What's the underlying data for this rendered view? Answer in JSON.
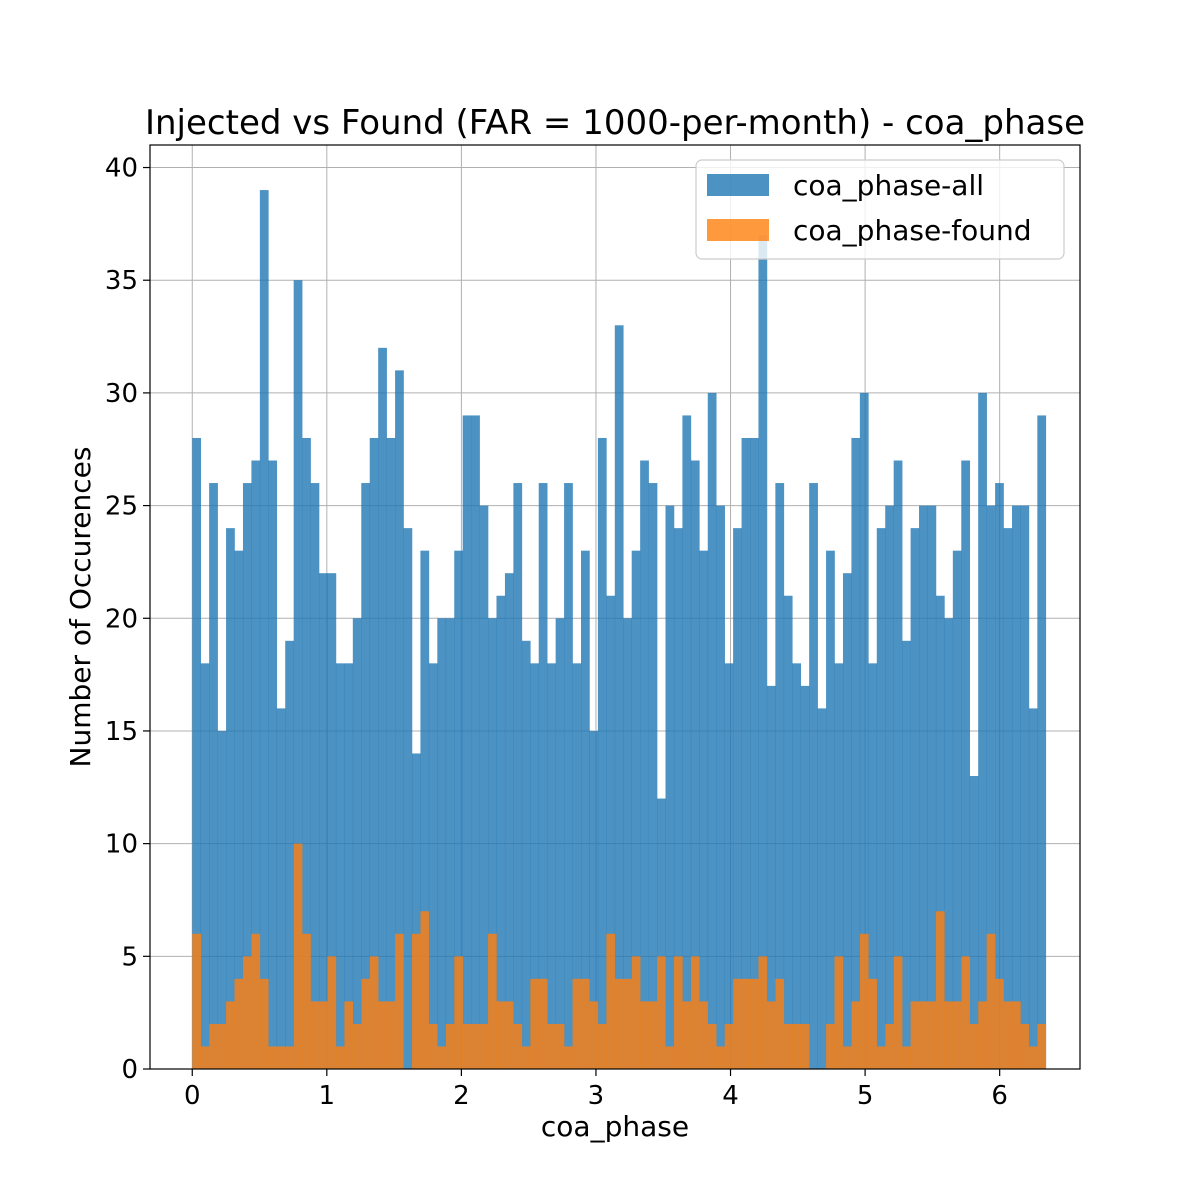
{
  "chart_data": {
    "type": "bar",
    "title": "Injected vs Found (FAR = 1000-per-month) - coa_phase",
    "xlabel": "coa_phase",
    "ylabel": "Number of Occurences",
    "xlim": [
      -0.314,
      6.597
    ],
    "ylim": [
      0,
      41
    ],
    "grid": true,
    "legend_position": "top-right",
    "bin_start": 0.0,
    "bin_width": 0.0628,
    "xticks": [
      0,
      1,
      2,
      3,
      4,
      5,
      6
    ],
    "yticks": [
      0,
      5,
      10,
      15,
      20,
      25,
      30,
      35,
      40
    ],
    "series": [
      {
        "name": "coa_phase-all",
        "color": "#1f77b4",
        "opacity": 0.8,
        "values": [
          28,
          18,
          26,
          15,
          24,
          23,
          26,
          27,
          39,
          27,
          16,
          19,
          35,
          28,
          26,
          22,
          22,
          18,
          18,
          20,
          26,
          28,
          32,
          28,
          31,
          24,
          14,
          23,
          18,
          20,
          20,
          23,
          29,
          29,
          25,
          20,
          21,
          22,
          26,
          19,
          18,
          26,
          18,
          20,
          26,
          18,
          23,
          15,
          28,
          21,
          33,
          20,
          23,
          27,
          26,
          12,
          25,
          24,
          29,
          27,
          23,
          30,
          25,
          18,
          24,
          28,
          28,
          37,
          17,
          26,
          21,
          18,
          17,
          26,
          16,
          23,
          18,
          22,
          28,
          30,
          18,
          24,
          25,
          27,
          19,
          24,
          25,
          25,
          21,
          20,
          23,
          27,
          13,
          30,
          25,
          26,
          24,
          25,
          25,
          16,
          29
        ]
      },
      {
        "name": "coa_phase-found",
        "color": "#ff7f0e",
        "opacity": 0.8,
        "values": [
          6,
          1,
          2,
          2,
          3,
          4,
          5,
          6,
          4,
          1,
          1,
          1,
          10,
          6,
          3,
          3,
          5,
          1,
          3,
          2,
          4,
          5,
          3,
          3,
          6,
          0,
          6,
          7,
          2,
          1,
          2,
          5,
          2,
          2,
          2,
          6,
          3,
          3,
          2,
          1,
          4,
          4,
          2,
          2,
          1,
          4,
          4,
          3,
          2,
          6,
          4,
          4,
          5,
          3,
          3,
          5,
          1,
          5,
          3,
          5,
          3,
          2,
          1,
          2,
          4,
          4,
          4,
          5,
          3,
          4,
          2,
          2,
          2,
          0,
          0,
          2,
          5,
          1,
          3,
          6,
          4,
          1,
          2,
          5,
          1,
          3,
          3,
          3,
          7,
          3,
          3,
          5,
          2,
          3,
          6,
          4,
          3,
          3,
          2,
          1,
          2
        ]
      }
    ]
  }
}
